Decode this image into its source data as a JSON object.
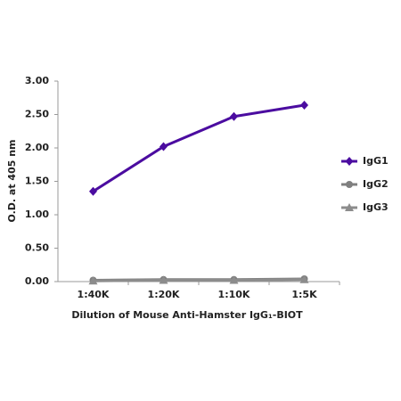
{
  "chart_data": {
    "type": "line",
    "x_label": "Dilution of Mouse Anti-Hamster IgG₁-BIOT",
    "y_label": "O.D. at 405 nm",
    "categories": [
      "1:40K",
      "1:20K",
      "1:10K",
      "1:5K"
    ],
    "series": [
      {
        "name": "IgG1",
        "color": "#4b0ca0",
        "marker": "diamond",
        "values": [
          1.35,
          2.02,
          2.47,
          2.64
        ]
      },
      {
        "name": "IgG2",
        "color": "#7f7f7f",
        "marker": "circle",
        "values": [
          0.02,
          0.03,
          0.03,
          0.04
        ]
      },
      {
        "name": "IgG3",
        "color": "#8c8c8c",
        "marker": "triangle",
        "values": [
          0.01,
          0.02,
          0.02,
          0.03
        ]
      }
    ],
    "ylim": [
      0,
      3
    ],
    "yticks": [
      {
        "value": 0,
        "label": "0.00"
      },
      {
        "value": 0.5,
        "label": "0.50"
      },
      {
        "value": 1,
        "label": "1.00"
      },
      {
        "value": 1.5,
        "label": "1.50"
      },
      {
        "value": 2,
        "label": "2.00"
      },
      {
        "value": 2.5,
        "label": "2.50"
      },
      {
        "value": 3,
        "label": "3.00"
      }
    ],
    "grid": false,
    "legend": "right"
  }
}
